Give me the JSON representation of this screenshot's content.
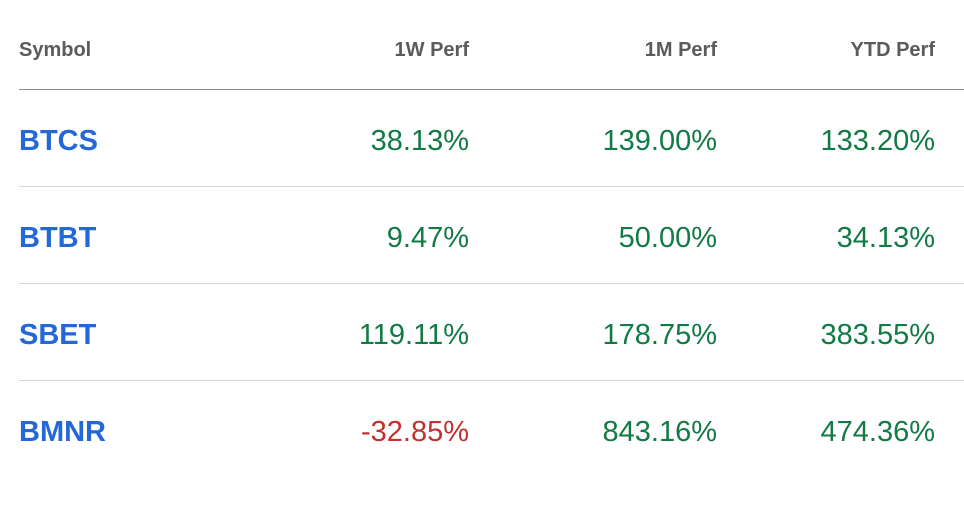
{
  "table": {
    "headers": {
      "symbol": "Symbol",
      "w1": "1W Perf",
      "m1": "1M Perf",
      "ytd": "YTD Perf"
    },
    "rows": [
      {
        "symbol": "BTCS",
        "w1": "38.13%",
        "m1": "139.00%",
        "ytd": "133.20%"
      },
      {
        "symbol": "BTBT",
        "w1": "9.47%",
        "m1": "50.00%",
        "ytd": "34.13%"
      },
      {
        "symbol": "SBET",
        "w1": "119.11%",
        "m1": "178.75%",
        "ytd": "383.55%"
      },
      {
        "symbol": "BMNR",
        "w1": "-32.85%",
        "m1": "843.16%",
        "ytd": "474.36%"
      }
    ]
  },
  "colors": {
    "symbol_link": "#2467d6",
    "positive": "#127a45",
    "negative": "#c0312f",
    "header_text": "#5b5b5b"
  }
}
